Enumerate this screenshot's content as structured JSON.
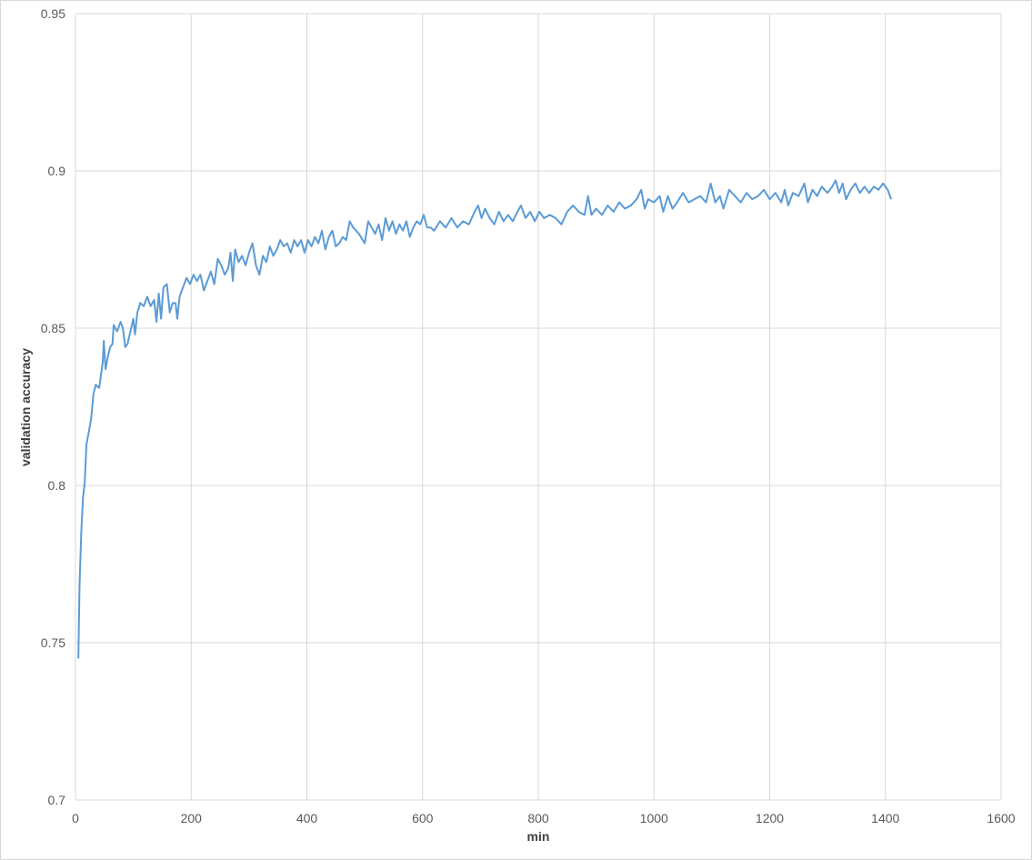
{
  "chart_data": {
    "type": "line",
    "xlabel": "min",
    "ylabel": "validation accuracy",
    "x": [
      5,
      7,
      10,
      13,
      16,
      19,
      23,
      27,
      31,
      35,
      41,
      47,
      49,
      52,
      56,
      60,
      64,
      66,
      72,
      78,
      82,
      86,
      90,
      95,
      100,
      103,
      107,
      112,
      118,
      124,
      130,
      136,
      140,
      144,
      148,
      152,
      158,
      163,
      168,
      173,
      176,
      180,
      186,
      192,
      198,
      204,
      210,
      216,
      222,
      228,
      234,
      240,
      246,
      252,
      258,
      264,
      268,
      272,
      276,
      282,
      288,
      294,
      300,
      306,
      312,
      318,
      324,
      330,
      336,
      342,
      348,
      354,
      360,
      366,
      372,
      378,
      384,
      390,
      396,
      402,
      408,
      414,
      420,
      426,
      432,
      438,
      444,
      450,
      456,
      462,
      468,
      474,
      480,
      490,
      500,
      506,
      512,
      518,
      524,
      530,
      536,
      542,
      548,
      554,
      560,
      566,
      572,
      578,
      584,
      590,
      596,
      602,
      608,
      614,
      620,
      630,
      640,
      650,
      660,
      670,
      680,
      690,
      696,
      702,
      708,
      716,
      724,
      732,
      740,
      748,
      756,
      764,
      770,
      778,
      786,
      794,
      802,
      810,
      820,
      830,
      840,
      850,
      860,
      870,
      880,
      886,
      892,
      900,
      910,
      920,
      930,
      940,
      950,
      960,
      970,
      978,
      984,
      990,
      1000,
      1010,
      1016,
      1024,
      1032,
      1040,
      1050,
      1060,
      1070,
      1080,
      1090,
      1098,
      1106,
      1114,
      1120,
      1130,
      1140,
      1150,
      1160,
      1170,
      1180,
      1190,
      1200,
      1210,
      1220,
      1226,
      1232,
      1240,
      1250,
      1260,
      1266,
      1274,
      1282,
      1290,
      1300,
      1308,
      1314,
      1320,
      1326,
      1332,
      1340,
      1348,
      1356,
      1364,
      1372,
      1380,
      1388,
      1396,
      1404,
      1410
    ],
    "series": [
      {
        "color": "#5b9bd5",
        "values": [
          0.745,
          0.768,
          0.785,
          0.796,
          0.801,
          0.813,
          0.817,
          0.821,
          0.829,
          0.832,
          0.831,
          0.839,
          0.846,
          0.837,
          0.841,
          0.844,
          0.845,
          0.851,
          0.849,
          0.852,
          0.85,
          0.844,
          0.845,
          0.849,
          0.853,
          0.848,
          0.855,
          0.858,
          0.857,
          0.86,
          0.857,
          0.859,
          0.852,
          0.861,
          0.853,
          0.863,
          0.864,
          0.855,
          0.858,
          0.858,
          0.853,
          0.86,
          0.863,
          0.866,
          0.864,
          0.867,
          0.865,
          0.867,
          0.862,
          0.865,
          0.868,
          0.864,
          0.872,
          0.87,
          0.867,
          0.869,
          0.874,
          0.865,
          0.875,
          0.871,
          0.873,
          0.87,
          0.874,
          0.877,
          0.87,
          0.867,
          0.873,
          0.871,
          0.876,
          0.873,
          0.875,
          0.878,
          0.876,
          0.877,
          0.874,
          0.878,
          0.876,
          0.878,
          0.874,
          0.878,
          0.876,
          0.879,
          0.877,
          0.881,
          0.875,
          0.879,
          0.881,
          0.876,
          0.877,
          0.879,
          0.878,
          0.884,
          0.882,
          0.88,
          0.877,
          0.884,
          0.882,
          0.88,
          0.883,
          0.878,
          0.885,
          0.881,
          0.884,
          0.88,
          0.883,
          0.881,
          0.884,
          0.879,
          0.882,
          0.884,
          0.883,
          0.886,
          0.882,
          0.882,
          0.881,
          0.884,
          0.882,
          0.885,
          0.882,
          0.884,
          0.883,
          0.887,
          0.889,
          0.885,
          0.888,
          0.885,
          0.883,
          0.887,
          0.884,
          0.886,
          0.884,
          0.887,
          0.889,
          0.885,
          0.887,
          0.884,
          0.887,
          0.885,
          0.886,
          0.885,
          0.883,
          0.887,
          0.889,
          0.887,
          0.886,
          0.892,
          0.886,
          0.888,
          0.886,
          0.889,
          0.887,
          0.89,
          0.888,
          0.889,
          0.891,
          0.894,
          0.888,
          0.891,
          0.89,
          0.892,
          0.887,
          0.892,
          0.888,
          0.89,
          0.893,
          0.89,
          0.891,
          0.892,
          0.89,
          0.896,
          0.89,
          0.892,
          0.888,
          0.894,
          0.892,
          0.89,
          0.893,
          0.891,
          0.892,
          0.894,
          0.891,
          0.893,
          0.89,
          0.894,
          0.889,
          0.893,
          0.892,
          0.896,
          0.89,
          0.894,
          0.892,
          0.895,
          0.893,
          0.895,
          0.897,
          0.893,
          0.896,
          0.891,
          0.894,
          0.896,
          0.893,
          0.895,
          0.893,
          0.895,
          0.894,
          0.896,
          0.894,
          0.891
        ]
      }
    ],
    "xlim": [
      0,
      1600
    ],
    "xticks": [
      0,
      200,
      400,
      600,
      800,
      1000,
      1200,
      1400,
      1600
    ],
    "ylim": [
      0.7,
      0.95
    ],
    "yticks": [
      0.7,
      0.75,
      0.8,
      0.85,
      0.9,
      0.95
    ],
    "grid": true
  }
}
